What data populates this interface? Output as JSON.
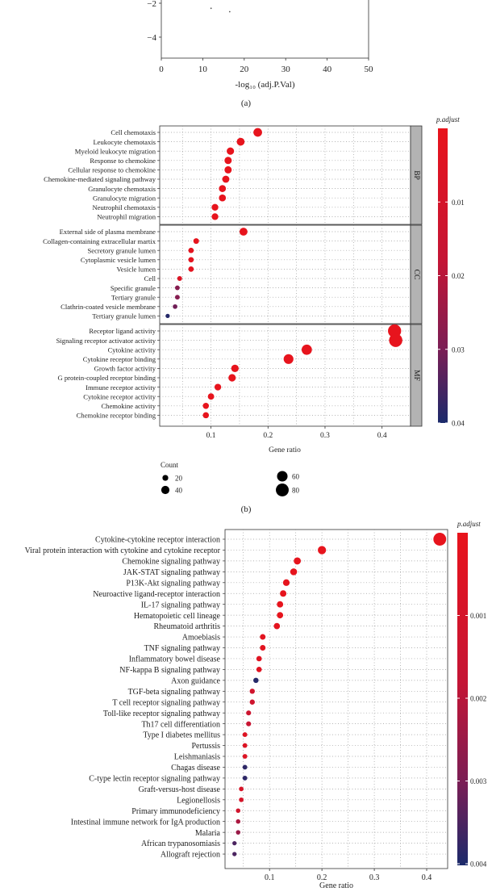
{
  "chart_data": [
    {
      "panel": "(a)",
      "type": "scatter",
      "xlabel": "-log₁₀ (adj.P.Val)",
      "x_ticks": [
        "0",
        "10",
        "20",
        "30",
        "40",
        "50"
      ],
      "xlim": [
        0,
        50
      ],
      "y_ticks": [
        "−2",
        "−4"
      ],
      "points": [
        {
          "x": 12,
          "y": -2.3
        },
        {
          "x": 16.5,
          "y": -2.5
        }
      ]
    },
    {
      "panel": "(b)",
      "type": "scatter",
      "xlabel": "Gene ratio",
      "x_ticks": [
        "0.1",
        "0.2",
        "0.3",
        "0.4"
      ],
      "xlim": [
        0.01,
        0.45
      ],
      "color_label": "p.adjust",
      "color_ticks": [
        "0.01",
        "0.02",
        "0.03",
        "0.04"
      ],
      "color_range": [
        0.0,
        0.04
      ],
      "size_legend_title": "Count",
      "size_legend": [
        {
          "label": "20",
          "count": 20
        },
        {
          "label": "40",
          "count": 40
        },
        {
          "label": "60",
          "count": 60
        },
        {
          "label": "80",
          "count": 80
        }
      ],
      "facets": [
        {
          "name": "BP",
          "terms": [
            {
              "label": "Cell chemotaxis",
              "x": 0.182,
              "count": 44,
              "p": 0.0004
            },
            {
              "label": "Leukocyte chemotaxis",
              "x": 0.152,
              "count": 37,
              "p": 0.0004
            },
            {
              "label": "Myeloid leukocyte migration",
              "x": 0.134,
              "count": 33,
              "p": 0.0004
            },
            {
              "label": "Response to chemokine",
              "x": 0.13,
              "count": 32,
              "p": 0.0004
            },
            {
              "label": "Cellular response to chemokine",
              "x": 0.13,
              "count": 32,
              "p": 0.0004
            },
            {
              "label": "Chemokine-mediated signaling pathway",
              "x": 0.126,
              "count": 31,
              "p": 0.0004
            },
            {
              "label": "Granulocyte chemotaxis",
              "x": 0.12,
              "count": 30,
              "p": 0.0004
            },
            {
              "label": "Granulocyte migration",
              "x": 0.12,
              "count": 30,
              "p": 0.0004
            },
            {
              "label": "Neutrophil chemotaxis",
              "x": 0.107,
              "count": 27,
              "p": 0.0004
            },
            {
              "label": "Neutrophil migration",
              "x": 0.107,
              "count": 27,
              "p": 0.0004
            }
          ]
        },
        {
          "name": "CC",
          "terms": [
            {
              "label": "External side of plasma membrane",
              "x": 0.157,
              "count": 38,
              "p": 0.0004
            },
            {
              "label": "Collagen-containing extracellular martix",
              "x": 0.074,
              "count": 18,
              "p": 0.001
            },
            {
              "label": "Secretory granule lumen",
              "x": 0.065,
              "count": 16,
              "p": 0.002
            },
            {
              "label": "Cytoplasmic vesicle lumen",
              "x": 0.065,
              "count": 16,
              "p": 0.002
            },
            {
              "label": "Vesicle lumen",
              "x": 0.065,
              "count": 16,
              "p": 0.002
            },
            {
              "label": "Cell",
              "x": 0.045,
              "count": 11,
              "p": 0.006
            },
            {
              "label": "Specific granule",
              "x": 0.041,
              "count": 10,
              "p": 0.028
            },
            {
              "label": "Tertiary granule",
              "x": 0.041,
              "count": 10,
              "p": 0.028
            },
            {
              "label": "Clathrin-coated vesicle membrane",
              "x": 0.037,
              "count": 9,
              "p": 0.031
            },
            {
              "label": "Tertiary granule lumen",
              "x": 0.024,
              "count": 6,
              "p": 0.039
            }
          ]
        },
        {
          "name": "MF",
          "terms": [
            {
              "label": "Receptor ligand activity",
              "x": 0.422,
              "count": 83,
              "p": 0.0004
            },
            {
              "label": "Signaling receptor activator activity",
              "x": 0.424,
              "count": 84,
              "p": 0.0004
            },
            {
              "label": "Cytokine activity",
              "x": 0.268,
              "count": 58,
              "p": 0.0004
            },
            {
              "label": "Cytokine receptor binding",
              "x": 0.236,
              "count": 54,
              "p": 0.0004
            },
            {
              "label": "Growth factor activity",
              "x": 0.142,
              "count": 34,
              "p": 0.0004
            },
            {
              "label": "G protein-coupled receptor binding",
              "x": 0.137,
              "count": 33,
              "p": 0.0004
            },
            {
              "label": "Immune receptor activity",
              "x": 0.112,
              "count": 27,
              "p": 0.0004
            },
            {
              "label": "Cytokine receptor activity",
              "x": 0.1,
              "count": 24,
              "p": 0.0004
            },
            {
              "label": "Chemokine activity",
              "x": 0.091,
              "count": 22,
              "p": 0.0004
            },
            {
              "label": "Chemokine receptor binding",
              "x": 0.091,
              "count": 22,
              "p": 0.0004
            }
          ]
        }
      ]
    },
    {
      "panel": "(c)",
      "type": "scatter",
      "xlabel": "Gene ratio",
      "x_ticks": [
        "0.1",
        "0.2",
        "0.3",
        "0.4"
      ],
      "xlim": [
        0.015,
        0.44
      ],
      "color_label": "p.adjust",
      "color_ticks": [
        "0.001",
        "0.002",
        "0.003",
        "0.004"
      ],
      "color_range": [
        0.0,
        0.004
      ],
      "terms": [
        {
          "label": "Cytokine-cytokine receptor interaction",
          "x": 0.425,
          "count": 82,
          "p": 5e-05
        },
        {
          "label": "Viral protein interaction with cytokine and cytokine receptor",
          "x": 0.2,
          "count": 42,
          "p": 5e-05
        },
        {
          "label": "Chemokine signaling pathway",
          "x": 0.153,
          "count": 32,
          "p": 0.0001
        },
        {
          "label": "JAK-STAT signaling pathway",
          "x": 0.146,
          "count": 30,
          "p": 0.0001
        },
        {
          "label": "P13K-Akt signaling pathway",
          "x": 0.132,
          "count": 28,
          "p": 0.0001
        },
        {
          "label": "Neuroactive ligand-receptor interaction",
          "x": 0.126,
          "count": 26,
          "p": 0.0001
        },
        {
          "label": "IL-17 signaling pathway",
          "x": 0.12,
          "count": 25,
          "p": 0.0001
        },
        {
          "label": "Hematopoietic cell lineage",
          "x": 0.12,
          "count": 25,
          "p": 0.0001
        },
        {
          "label": "Rheumatoid arthritis",
          "x": 0.114,
          "count": 24,
          "p": 0.0002
        },
        {
          "label": "Amoebiasis",
          "x": 0.087,
          "count": 19,
          "p": 0.0003
        },
        {
          "label": "TNF signaling pathway",
          "x": 0.087,
          "count": 19,
          "p": 0.0003
        },
        {
          "label": "Inflammatory bowel disease",
          "x": 0.08,
          "count": 17,
          "p": 0.0004
        },
        {
          "label": "NF-kappa B signaling pathway",
          "x": 0.08,
          "count": 17,
          "p": 0.0004
        },
        {
          "label": "Axon guidance",
          "x": 0.074,
          "count": 16,
          "p": 0.0039
        },
        {
          "label": "TGF-beta signaling pathway",
          "x": 0.067,
          "count": 15,
          "p": 0.0012
        },
        {
          "label": "T cell receptor signaling pathway",
          "x": 0.067,
          "count": 15,
          "p": 0.0013
        },
        {
          "label": "Toll-like receptor signaling pathway",
          "x": 0.06,
          "count": 13,
          "p": 0.0014
        },
        {
          "label": "Th17 cell differentiation",
          "x": 0.06,
          "count": 13,
          "p": 0.0016
        },
        {
          "label": "Type I diabetes mellitus",
          "x": 0.053,
          "count": 11,
          "p": 0.0005
        },
        {
          "label": "Pertussis",
          "x": 0.053,
          "count": 11,
          "p": 0.0006
        },
        {
          "label": "Leishmaniasis",
          "x": 0.053,
          "count": 11,
          "p": 0.0006
        },
        {
          "label": "Chagas disease",
          "x": 0.053,
          "count": 11,
          "p": 0.0038
        },
        {
          "label": "C-type lectin receptor signaling pathway",
          "x": 0.053,
          "count": 11,
          "p": 0.0038
        },
        {
          "label": "Graft-versus-host disease",
          "x": 0.046,
          "count": 10,
          "p": 0.0009
        },
        {
          "label": "Legionellosis",
          "x": 0.046,
          "count": 10,
          "p": 0.0009
        },
        {
          "label": "Primary immunodeficiency",
          "x": 0.04,
          "count": 9,
          "p": 0.0012
        },
        {
          "label": "Intestinal immune network for IgA production",
          "x": 0.04,
          "count": 9,
          "p": 0.0022
        },
        {
          "label": "Malaria",
          "x": 0.04,
          "count": 9,
          "p": 0.0025
        },
        {
          "label": "African trypanosomiasis",
          "x": 0.033,
          "count": 7,
          "p": 0.0035
        },
        {
          "label": "Allograft rejection",
          "x": 0.033,
          "count": 7,
          "p": 0.0035
        }
      ]
    }
  ]
}
